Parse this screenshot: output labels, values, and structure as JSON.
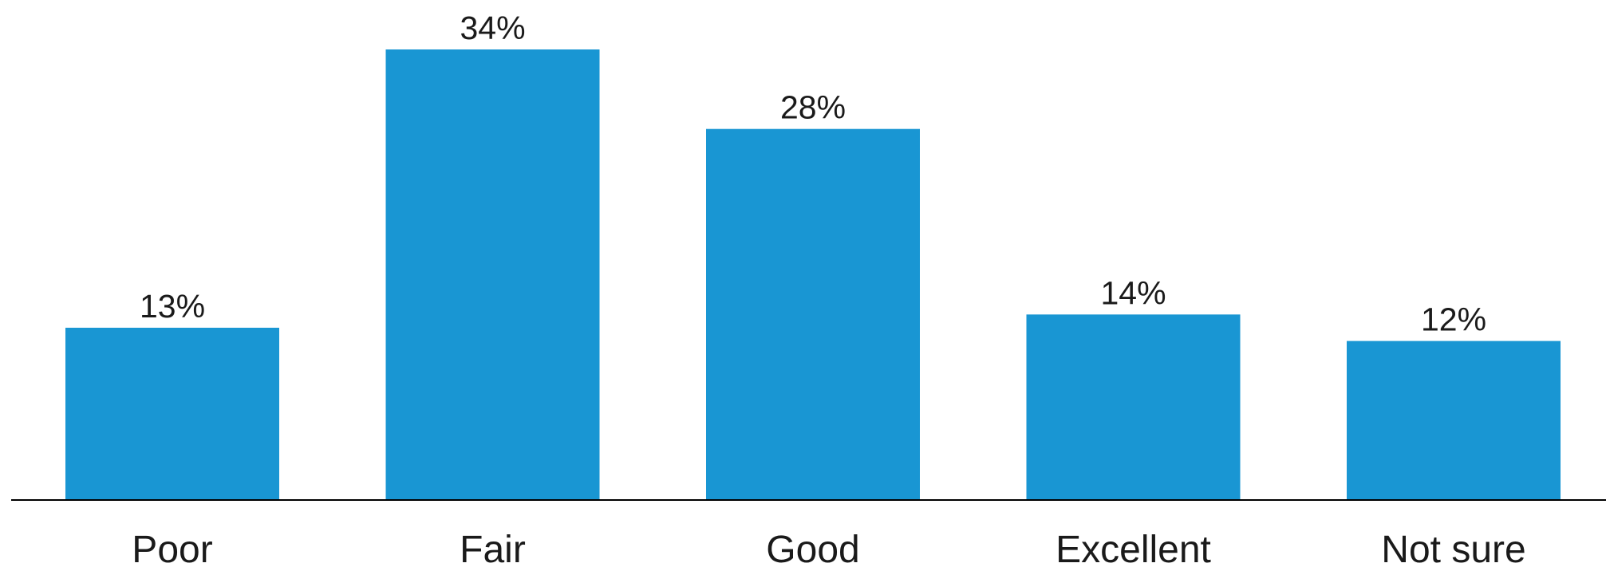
{
  "chart_data": {
    "type": "bar",
    "categories": [
      "Poor",
      "Fair",
      "Good",
      "Excellent",
      "Not sure"
    ],
    "values": [
      13,
      34,
      28,
      14,
      12
    ],
    "data_labels": [
      "13%",
      "34%",
      "28%",
      "14%",
      "12%"
    ],
    "title": "",
    "xlabel": "",
    "ylabel": "",
    "ylim": [
      0,
      34
    ],
    "grid": false,
    "legend": "none",
    "bar_color": "#1996d3",
    "axis_color": "#000000"
  }
}
